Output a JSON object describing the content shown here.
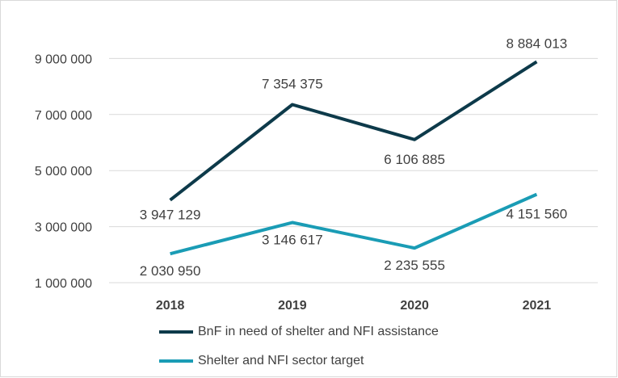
{
  "colors": {
    "series_1": "#0d3a4a",
    "series_2": "#1a9cb5",
    "grid": "#d9d9d9",
    "text": "#404040"
  },
  "chart_data": {
    "type": "line",
    "categories": [
      "2018",
      "2019",
      "2020",
      "2021"
    ],
    "y_ticks": [
      "1 000 000",
      "3 000 000",
      "5 000 000",
      "7 000 000",
      "9 000 000"
    ],
    "ylim": [
      1000000,
      10000000
    ],
    "grid": true,
    "legend_position": "bottom",
    "series": [
      {
        "name": "BnF in need of shelter and NFI assistance",
        "values": [
          3947129,
          7354375,
          6106885,
          8884013
        ],
        "labels": [
          "3 947 129",
          "7 354 375",
          "6 106 885",
          "8 884 013"
        ]
      },
      {
        "name": "Shelter and NFI sector target",
        "values": [
          2030950,
          3146617,
          2235555,
          4151560
        ],
        "labels": [
          "2 030 950",
          "3 146 617",
          "2 235 555",
          "4 151 560"
        ]
      }
    ]
  }
}
